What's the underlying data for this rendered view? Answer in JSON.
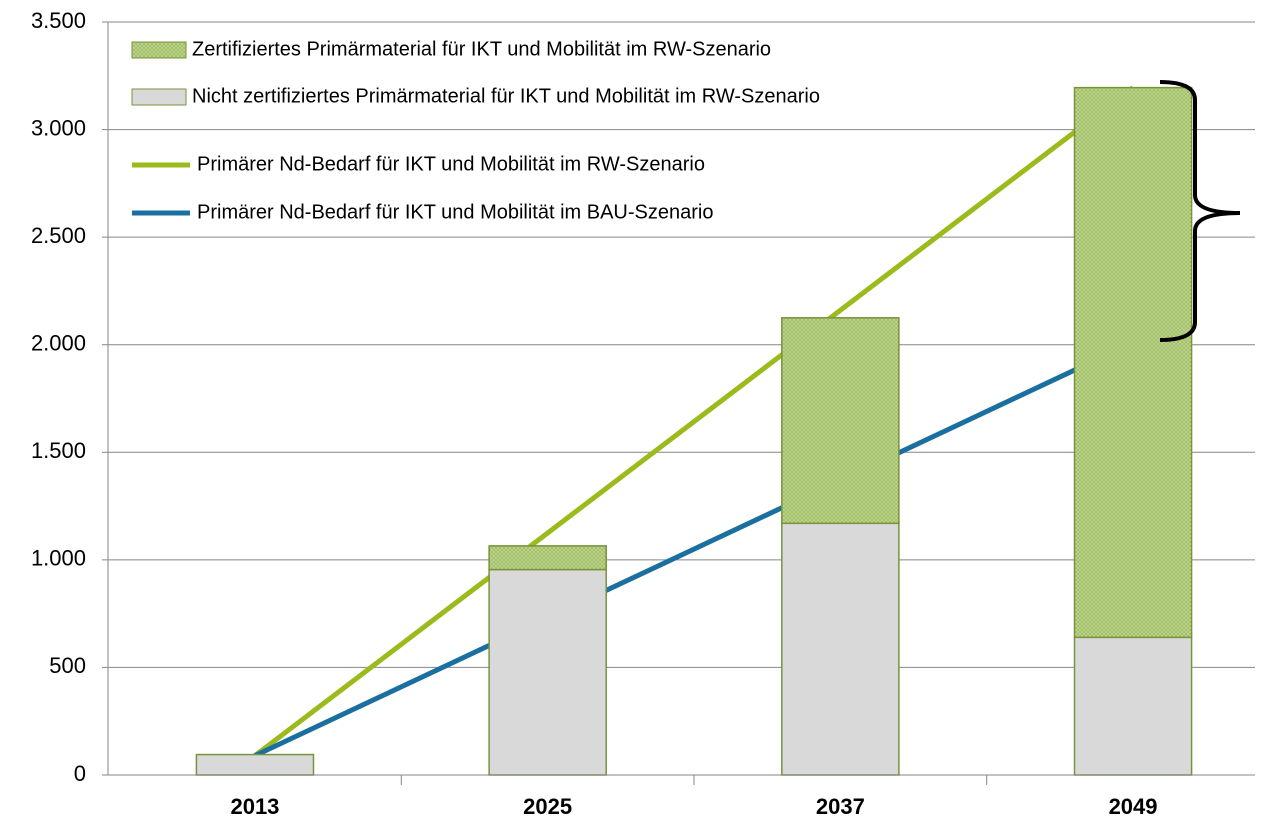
{
  "chart_data": {
    "type": "bar",
    "categories": [
      "2013",
      "2025",
      "2037",
      "2049"
    ],
    "series": [
      {
        "name": "Zertifiziertes Primärmaterial für IKT und Mobilität im RW-Szenario",
        "type": "bar",
        "color": "#c4d79b",
        "values": [
          0,
          110,
          955,
          2555
        ]
      },
      {
        "name": "Nicht zertifiziertes Primärmaterial für IKT und Mobilität im RW-Szenario",
        "type": "bar",
        "color": "#d9d9d9",
        "values": [
          95,
          955,
          1170,
          640
        ]
      },
      {
        "name": "Primärer Nd-Bedarf für IKT und Mobilität im RW-Szenario",
        "type": "line",
        "color": "#9bbb1c",
        "values": [
          90,
          1125,
          2160,
          3195
        ]
      },
      {
        "name": "Primärer Nd-Bedarf für IKT und Mobilität im BAU-Szenario",
        "type": "line",
        "color": "#1a6fa0",
        "values": [
          90,
          730,
          1370,
          2010
        ]
      }
    ],
    "ylim": [
      0,
      3500
    ],
    "yticks": [
      0,
      500,
      {
        "value": 1000,
        "label": "1.000"
      },
      {
        "value": 1500,
        "label": "1.500"
      },
      {
        "value": 2000,
        "label": "2.000"
      },
      {
        "value": 2500,
        "label": "2.500"
      },
      {
        "value": 3000,
        "label": "3.000"
      },
      {
        "value": 3500,
        "label": "3.500"
      }
    ],
    "grid": true
  }
}
